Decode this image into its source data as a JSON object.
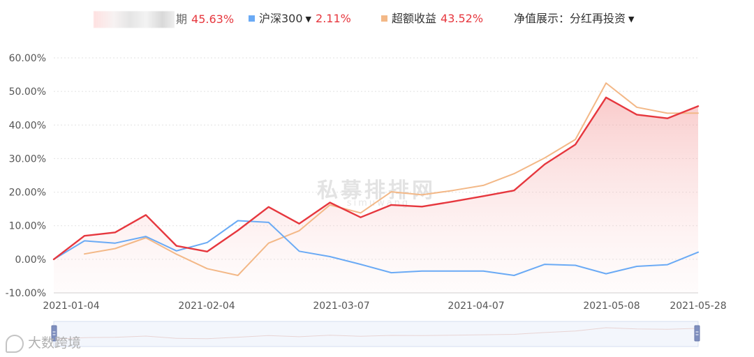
{
  "legend": {
    "fund": {
      "name_suffix": "期",
      "value": "45.63%",
      "color": "#e6373e"
    },
    "index": {
      "name": "沪深300",
      "value": "2.11%",
      "color": "#6aaaf5",
      "dropdown_icon": "caret-down-icon"
    },
    "excess": {
      "name": "超额收益",
      "value": "43.52%",
      "color": "#f3b887"
    },
    "nav_mode": {
      "label": "净值展示：分红再投资",
      "dropdown_icon": "caret-down-icon"
    }
  },
  "watermark": {
    "main": "私募排排网",
    "sub": "simuwang"
  },
  "corner_mark": {
    "text": "大数跨境",
    "icon": "logo-icon"
  },
  "chart_data": {
    "type": "line",
    "title": "",
    "xlabel": "",
    "ylabel": "",
    "ylim": [
      -10,
      60
    ],
    "y_ticks": [
      "-10.00%",
      "0.00%",
      "10.00%",
      "20.00%",
      "30.00%",
      "40.00%",
      "50.00%",
      "60.00%"
    ],
    "x_tick_labels": [
      "2021-01-04",
      "2021-02-04",
      "2021-03-07",
      "2021-04-07",
      "2021-05-08",
      "2021-05-28"
    ],
    "grid": true,
    "legend_position": "top",
    "fill_under_first_series": true,
    "series": [
      {
        "name": "期",
        "color": "#e6373e",
        "values": [
          0.0,
          7.0,
          8.0,
          13.2,
          4.0,
          2.3,
          8.6,
          15.6,
          10.6,
          16.9,
          12.5,
          16.2,
          15.7,
          17.2,
          18.8,
          20.5,
          28.3,
          34.2,
          48.2,
          43.1,
          42.0,
          45.63
        ]
      },
      {
        "name": "沪深300",
        "color": "#6aaaf5",
        "values": [
          0.0,
          5.5,
          4.8,
          6.8,
          2.5,
          5.0,
          11.5,
          11.0,
          2.4,
          0.8,
          -1.5,
          -4.0,
          -3.5,
          -3.5,
          -3.5,
          -4.8,
          -1.5,
          -1.8,
          -4.3,
          -2.1,
          -1.6,
          2.11
        ]
      },
      {
        "name": "超额收益",
        "color": "#f3b887",
        "values": [
          null,
          1.6,
          3.2,
          6.4,
          1.5,
          -2.8,
          -4.8,
          4.8,
          8.5,
          16.2,
          13.8,
          20.1,
          19.2,
          20.5,
          22.0,
          25.5,
          30.2,
          35.7,
          52.5,
          45.3,
          43.5,
          43.52
        ]
      }
    ]
  },
  "zoom_slider": {
    "start_handle_icon": "handle-icon",
    "end_handle_icon": "handle-icon"
  }
}
